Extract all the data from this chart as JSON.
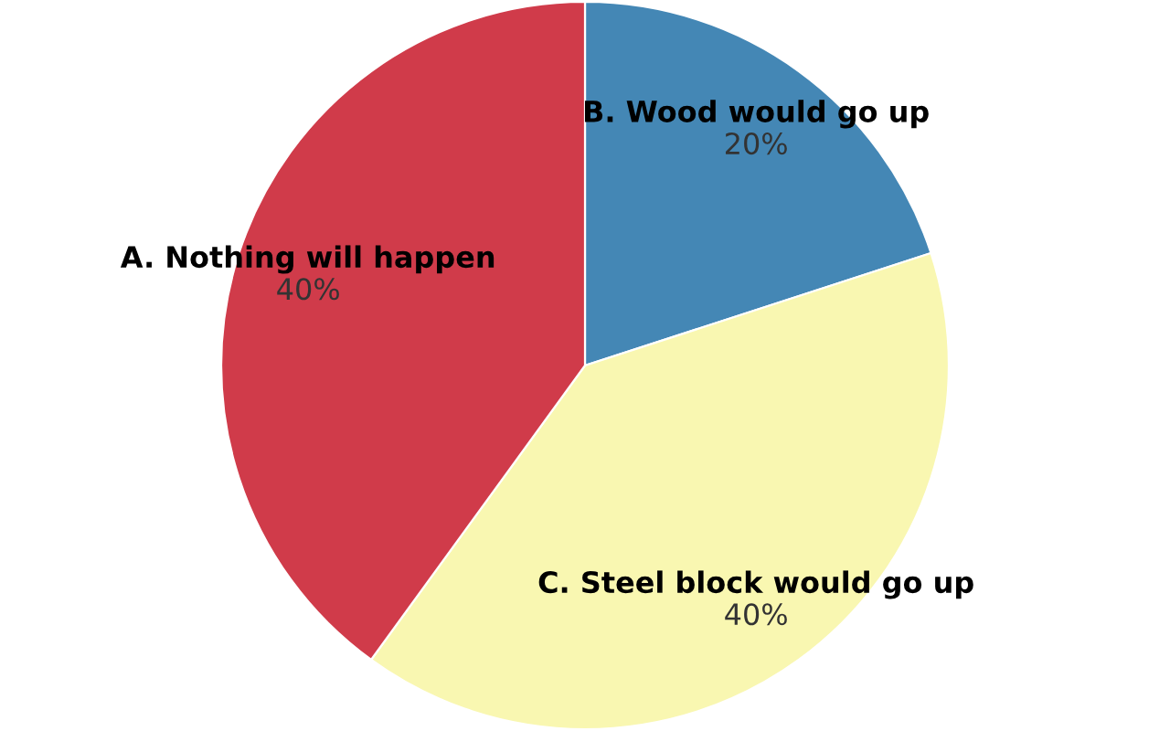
{
  "chart_data": {
    "type": "pie",
    "categories": [
      "B. Wood would go up",
      "C. Steel block would go up",
      "A. Nothing will happen"
    ],
    "values": [
      20,
      40,
      40
    ],
    "colors": [
      "#4487b5",
      "#f9f7b1",
      "#d03b4a"
    ],
    "value_labels": [
      "20%",
      "40%",
      "40%"
    ]
  }
}
